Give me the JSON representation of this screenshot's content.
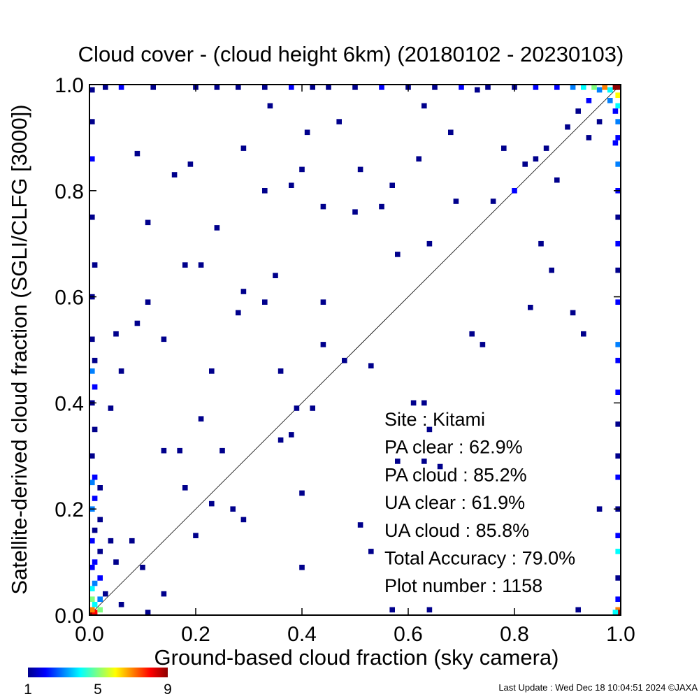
{
  "chart_data": {
    "type": "heatmap",
    "title": "Cloud cover - (cloud height 6km)  (20180102 - 20230103)",
    "xlabel": "Ground-based cloud fraction (sky camera)",
    "ylabel": "Satellite-derived cloud fraction (SGLI/CLFG [3000])",
    "xlim": [
      0.0,
      1.0
    ],
    "ylim": [
      0.0,
      1.0
    ],
    "xticks": [
      "0.0",
      "0.2",
      "0.4",
      "0.6",
      "0.8",
      "1.0"
    ],
    "yticks": [
      "0.0",
      "0.2",
      "0.4",
      "0.6",
      "0.8",
      "1.0"
    ],
    "reference_line": "1:1 diagonal",
    "colorbar": {
      "min": 1,
      "max": 9,
      "ticks": [
        "1",
        "5",
        "9"
      ]
    },
    "stats": [
      {
        "label": "Site : Kitami"
      },
      {
        "label": "PA clear :  62.9%"
      },
      {
        "label": "PA cloud :  85.2%"
      },
      {
        "label": "UA clear :  61.9%"
      },
      {
        "label": "UA cloud :  85.8%"
      },
      {
        "label": "Total Accuracy :  79.0%"
      },
      {
        "label": "Plot number :      1158"
      }
    ],
    "points": [
      {
        "x": 0.0,
        "y": 0.0,
        "c": 9
      },
      {
        "x": 0.01,
        "y": 0.0,
        "c": 8
      },
      {
        "x": 0.0,
        "y": 0.01,
        "c": 7
      },
      {
        "x": 0.02,
        "y": 0.01,
        "c": 5
      },
      {
        "x": 0.01,
        "y": 0.02,
        "c": 4
      },
      {
        "x": 0.0,
        "y": 0.03,
        "c": 5
      },
      {
        "x": 0.02,
        "y": 0.03,
        "c": 3
      },
      {
        "x": 0.0,
        "y": 0.05,
        "c": 4
      },
      {
        "x": 0.01,
        "y": 0.06,
        "c": 3
      },
      {
        "x": 0.02,
        "y": 0.07,
        "c": 2
      },
      {
        "x": 0.0,
        "y": 0.09,
        "c": 2
      },
      {
        "x": 0.01,
        "y": 0.1,
        "c": 2
      },
      {
        "x": 0.02,
        "y": 0.12,
        "c": 1
      },
      {
        "x": 0.0,
        "y": 0.14,
        "c": 2
      },
      {
        "x": 0.01,
        "y": 0.16,
        "c": 1
      },
      {
        "x": 0.02,
        "y": 0.18,
        "c": 1
      },
      {
        "x": 0.0,
        "y": 0.2,
        "c": 3
      },
      {
        "x": 0.01,
        "y": 0.22,
        "c": 2
      },
      {
        "x": 0.0,
        "y": 0.25,
        "c": 3
      },
      {
        "x": 0.01,
        "y": 0.26,
        "c": 2
      },
      {
        "x": 0.02,
        "y": 0.24,
        "c": 1
      },
      {
        "x": 0.0,
        "y": 0.3,
        "c": 1
      },
      {
        "x": 0.01,
        "y": 0.35,
        "c": 1
      },
      {
        "x": 0.0,
        "y": 0.4,
        "c": 1
      },
      {
        "x": 0.01,
        "y": 0.43,
        "c": 2
      },
      {
        "x": 0.0,
        "y": 0.46,
        "c": 3
      },
      {
        "x": 0.01,
        "y": 0.48,
        "c": 1
      },
      {
        "x": 0.0,
        "y": 0.52,
        "c": 1
      },
      {
        "x": 0.0,
        "y": 0.6,
        "c": 1
      },
      {
        "x": 0.01,
        "y": 0.66,
        "c": 1
      },
      {
        "x": 0.0,
        "y": 0.75,
        "c": 1
      },
      {
        "x": 0.0,
        "y": 0.86,
        "c": 2
      },
      {
        "x": 0.0,
        "y": 0.93,
        "c": 1
      },
      {
        "x": 0.0,
        "y": 0.99,
        "c": 1
      },
      {
        "x": 0.04,
        "y": 0.14,
        "c": 1
      },
      {
        "x": 0.05,
        "y": 0.1,
        "c": 1
      },
      {
        "x": 0.03,
        "y": 0.04,
        "c": 1
      },
      {
        "x": 0.06,
        "y": 0.02,
        "c": 1
      },
      {
        "x": 0.08,
        "y": 0.14,
        "c": 1
      },
      {
        "x": 0.1,
        "y": 0.09,
        "c": 1
      },
      {
        "x": 0.11,
        "y": 0.0,
        "c": 1
      },
      {
        "x": 0.14,
        "y": 0.04,
        "c": 1
      },
      {
        "x": 0.14,
        "y": 0.31,
        "c": 1
      },
      {
        "x": 0.17,
        "y": 0.31,
        "c": 1
      },
      {
        "x": 0.18,
        "y": 0.24,
        "c": 1
      },
      {
        "x": 0.2,
        "y": 0.15,
        "c": 1
      },
      {
        "x": 0.21,
        "y": 0.37,
        "c": 1
      },
      {
        "x": 0.23,
        "y": 0.21,
        "c": 1
      },
      {
        "x": 0.25,
        "y": 0.31,
        "c": 1
      },
      {
        "x": 0.27,
        "y": 0.2,
        "c": 1
      },
      {
        "x": 0.29,
        "y": 0.18,
        "c": 1
      },
      {
        "x": 0.04,
        "y": 0.39,
        "c": 1
      },
      {
        "x": 0.06,
        "y": 0.46,
        "c": 1
      },
      {
        "x": 0.05,
        "y": 0.53,
        "c": 1
      },
      {
        "x": 0.09,
        "y": 0.55,
        "c": 1
      },
      {
        "x": 0.11,
        "y": 0.59,
        "c": 1
      },
      {
        "x": 0.14,
        "y": 0.52,
        "c": 1
      },
      {
        "x": 0.18,
        "y": 0.66,
        "c": 1
      },
      {
        "x": 0.21,
        "y": 0.66,
        "c": 1
      },
      {
        "x": 0.23,
        "y": 0.46,
        "c": 1
      },
      {
        "x": 0.28,
        "y": 0.57,
        "c": 1
      },
      {
        "x": 0.29,
        "y": 0.61,
        "c": 1
      },
      {
        "x": 0.33,
        "y": 0.59,
        "c": 1
      },
      {
        "x": 0.35,
        "y": 0.64,
        "c": 1
      },
      {
        "x": 0.36,
        "y": 0.46,
        "c": 1
      },
      {
        "x": 0.36,
        "y": 0.33,
        "c": 1
      },
      {
        "x": 0.38,
        "y": 0.34,
        "c": 1
      },
      {
        "x": 0.39,
        "y": 0.39,
        "c": 1
      },
      {
        "x": 0.4,
        "y": 0.23,
        "c": 1
      },
      {
        "x": 0.4,
        "y": 0.09,
        "c": 1
      },
      {
        "x": 0.42,
        "y": 0.39,
        "c": 1
      },
      {
        "x": 0.44,
        "y": 0.59,
        "c": 1
      },
      {
        "x": 0.44,
        "y": 0.51,
        "c": 1
      },
      {
        "x": 0.48,
        "y": 0.48,
        "c": 1
      },
      {
        "x": 0.51,
        "y": 0.17,
        "c": 1
      },
      {
        "x": 0.53,
        "y": 0.47,
        "c": 1
      },
      {
        "x": 0.53,
        "y": 0.12,
        "c": 1
      },
      {
        "x": 0.57,
        "y": 0.01,
        "c": 1
      },
      {
        "x": 0.58,
        "y": 0.29,
        "c": 1
      },
      {
        "x": 0.61,
        "y": 0.4,
        "c": 1
      },
      {
        "x": 0.63,
        "y": 0.4,
        "c": 1
      },
      {
        "x": 0.64,
        "y": 0.35,
        "c": 1
      },
      {
        "x": 0.63,
        "y": 0.29,
        "c": 1
      },
      {
        "x": 0.66,
        "y": 0.28,
        "c": 1
      },
      {
        "x": 0.64,
        "y": 0.01,
        "c": 1
      },
      {
        "x": 0.72,
        "y": 0.53,
        "c": 1
      },
      {
        "x": 0.74,
        "y": 0.51,
        "c": 1
      },
      {
        "x": 0.76,
        "y": 0.78,
        "c": 1
      },
      {
        "x": 0.8,
        "y": 0.8,
        "c": 2
      },
      {
        "x": 0.83,
        "y": 0.58,
        "c": 1
      },
      {
        "x": 0.85,
        "y": 0.7,
        "c": 1
      },
      {
        "x": 0.87,
        "y": 0.65,
        "c": 1
      },
      {
        "x": 0.91,
        "y": 0.57,
        "c": 1
      },
      {
        "x": 0.93,
        "y": 0.53,
        "c": 1
      },
      {
        "x": 0.96,
        "y": 0.2,
        "c": 1
      },
      {
        "x": 0.92,
        "y": 0.01,
        "c": 1
      },
      {
        "x": 0.09,
        "y": 0.87,
        "c": 1
      },
      {
        "x": 0.11,
        "y": 0.74,
        "c": 1
      },
      {
        "x": 0.16,
        "y": 0.83,
        "c": 1
      },
      {
        "x": 0.19,
        "y": 0.85,
        "c": 1
      },
      {
        "x": 0.24,
        "y": 0.73,
        "c": 1
      },
      {
        "x": 0.29,
        "y": 0.88,
        "c": 1
      },
      {
        "x": 0.33,
        "y": 0.8,
        "c": 1
      },
      {
        "x": 0.34,
        "y": 0.96,
        "c": 1
      },
      {
        "x": 0.38,
        "y": 0.81,
        "c": 1
      },
      {
        "x": 0.41,
        "y": 0.91,
        "c": 1
      },
      {
        "x": 0.4,
        "y": 0.84,
        "c": 1
      },
      {
        "x": 0.44,
        "y": 0.77,
        "c": 1
      },
      {
        "x": 0.47,
        "y": 0.93,
        "c": 1
      },
      {
        "x": 0.5,
        "y": 0.76,
        "c": 1
      },
      {
        "x": 0.51,
        "y": 0.84,
        "c": 1
      },
      {
        "x": 0.55,
        "y": 0.77,
        "c": 1
      },
      {
        "x": 0.57,
        "y": 0.81,
        "c": 1
      },
      {
        "x": 0.58,
        "y": 0.68,
        "c": 1
      },
      {
        "x": 0.62,
        "y": 0.86,
        "c": 1
      },
      {
        "x": 0.63,
        "y": 0.96,
        "c": 1
      },
      {
        "x": 0.64,
        "y": 0.7,
        "c": 1
      },
      {
        "x": 0.68,
        "y": 0.91,
        "c": 1
      },
      {
        "x": 0.69,
        "y": 0.78,
        "c": 1
      },
      {
        "x": 0.73,
        "y": 0.99,
        "c": 1
      },
      {
        "x": 0.78,
        "y": 0.88,
        "c": 1
      },
      {
        "x": 0.82,
        "y": 0.85,
        "c": 1
      },
      {
        "x": 0.84,
        "y": 0.86,
        "c": 1
      },
      {
        "x": 0.86,
        "y": 0.88,
        "c": 1
      },
      {
        "x": 0.88,
        "y": 0.82,
        "c": 1
      },
      {
        "x": 0.9,
        "y": 0.92,
        "c": 1
      },
      {
        "x": 0.92,
        "y": 0.95,
        "c": 1
      },
      {
        "x": 0.94,
        "y": 0.97,
        "c": 2
      },
      {
        "x": 0.96,
        "y": 0.99,
        "c": 3
      },
      {
        "x": 0.98,
        "y": 0.99,
        "c": 4
      },
      {
        "x": 0.99,
        "y": 1.0,
        "c": 9
      },
      {
        "x": 1.0,
        "y": 1.0,
        "c": 9
      },
      {
        "x": 0.97,
        "y": 1.0,
        "c": 7
      },
      {
        "x": 0.95,
        "y": 1.0,
        "c": 5
      },
      {
        "x": 0.93,
        "y": 1.0,
        "c": 4
      },
      {
        "x": 0.91,
        "y": 1.0,
        "c": 3
      },
      {
        "x": 0.88,
        "y": 1.0,
        "c": 2
      },
      {
        "x": 0.84,
        "y": 1.0,
        "c": 2
      },
      {
        "x": 0.8,
        "y": 1.0,
        "c": 1
      },
      {
        "x": 0.75,
        "y": 1.0,
        "c": 1
      },
      {
        "x": 0.7,
        "y": 1.0,
        "c": 2
      },
      {
        "x": 0.65,
        "y": 1.0,
        "c": 1
      },
      {
        "x": 0.6,
        "y": 1.0,
        "c": 1
      },
      {
        "x": 0.55,
        "y": 1.0,
        "c": 2
      },
      {
        "x": 0.5,
        "y": 1.0,
        "c": 1
      },
      {
        "x": 0.45,
        "y": 1.0,
        "c": 1
      },
      {
        "x": 0.42,
        "y": 1.0,
        "c": 1
      },
      {
        "x": 0.38,
        "y": 1.0,
        "c": 2
      },
      {
        "x": 0.33,
        "y": 1.0,
        "c": 1
      },
      {
        "x": 0.28,
        "y": 1.0,
        "c": 1
      },
      {
        "x": 0.24,
        "y": 1.0,
        "c": 1
      },
      {
        "x": 0.2,
        "y": 1.0,
        "c": 1
      },
      {
        "x": 0.12,
        "y": 1.0,
        "c": 1
      },
      {
        "x": 0.06,
        "y": 1.0,
        "c": 2
      },
      {
        "x": 0.03,
        "y": 1.0,
        "c": 1
      },
      {
        "x": 1.0,
        "y": 0.98,
        "c": 6
      },
      {
        "x": 1.0,
        "y": 0.96,
        "c": 4
      },
      {
        "x": 1.0,
        "y": 0.93,
        "c": 3
      },
      {
        "x": 1.0,
        "y": 0.9,
        "c": 2
      },
      {
        "x": 1.0,
        "y": 0.85,
        "c": 3
      },
      {
        "x": 1.0,
        "y": 0.8,
        "c": 2
      },
      {
        "x": 1.0,
        "y": 0.75,
        "c": 1
      },
      {
        "x": 1.0,
        "y": 0.7,
        "c": 2
      },
      {
        "x": 1.0,
        "y": 0.65,
        "c": 1
      },
      {
        "x": 1.0,
        "y": 0.59,
        "c": 2
      },
      {
        "x": 1.0,
        "y": 0.51,
        "c": 3
      },
      {
        "x": 1.0,
        "y": 0.48,
        "c": 2
      },
      {
        "x": 1.0,
        "y": 0.42,
        "c": 2
      },
      {
        "x": 1.0,
        "y": 0.36,
        "c": 1
      },
      {
        "x": 1.0,
        "y": 0.3,
        "c": 1
      },
      {
        "x": 1.0,
        "y": 0.26,
        "c": 2
      },
      {
        "x": 1.0,
        "y": 0.2,
        "c": 1
      },
      {
        "x": 1.0,
        "y": 0.15,
        "c": 2
      },
      {
        "x": 1.0,
        "y": 0.12,
        "c": 4
      },
      {
        "x": 1.0,
        "y": 0.07,
        "c": 1
      },
      {
        "x": 1.0,
        "y": 0.03,
        "c": 2
      },
      {
        "x": 1.0,
        "y": 0.01,
        "c": 7
      },
      {
        "x": 1.0,
        "y": 0.0,
        "c": 9
      },
      {
        "x": 0.99,
        "y": 0.0,
        "c": 4
      },
      {
        "x": 0.99,
        "y": 0.89,
        "c": 2
      },
      {
        "x": 0.99,
        "y": 0.95,
        "c": 2
      },
      {
        "x": 0.98,
        "y": 0.97,
        "c": 3
      },
      {
        "x": 0.96,
        "y": 0.93,
        "c": 1
      },
      {
        "x": 0.94,
        "y": 0.9,
        "c": 1
      }
    ]
  },
  "footer": {
    "last_update": "Last Update : Wed Dec 18 10:04:51 2024  ©JAXA"
  },
  "colors": {
    "ramp": [
      "#00008c",
      "#0000ff",
      "#0080ff",
      "#00ffff",
      "#80ff80",
      "#ffff00",
      "#ff8000",
      "#ff0000",
      "#8c0000"
    ]
  }
}
